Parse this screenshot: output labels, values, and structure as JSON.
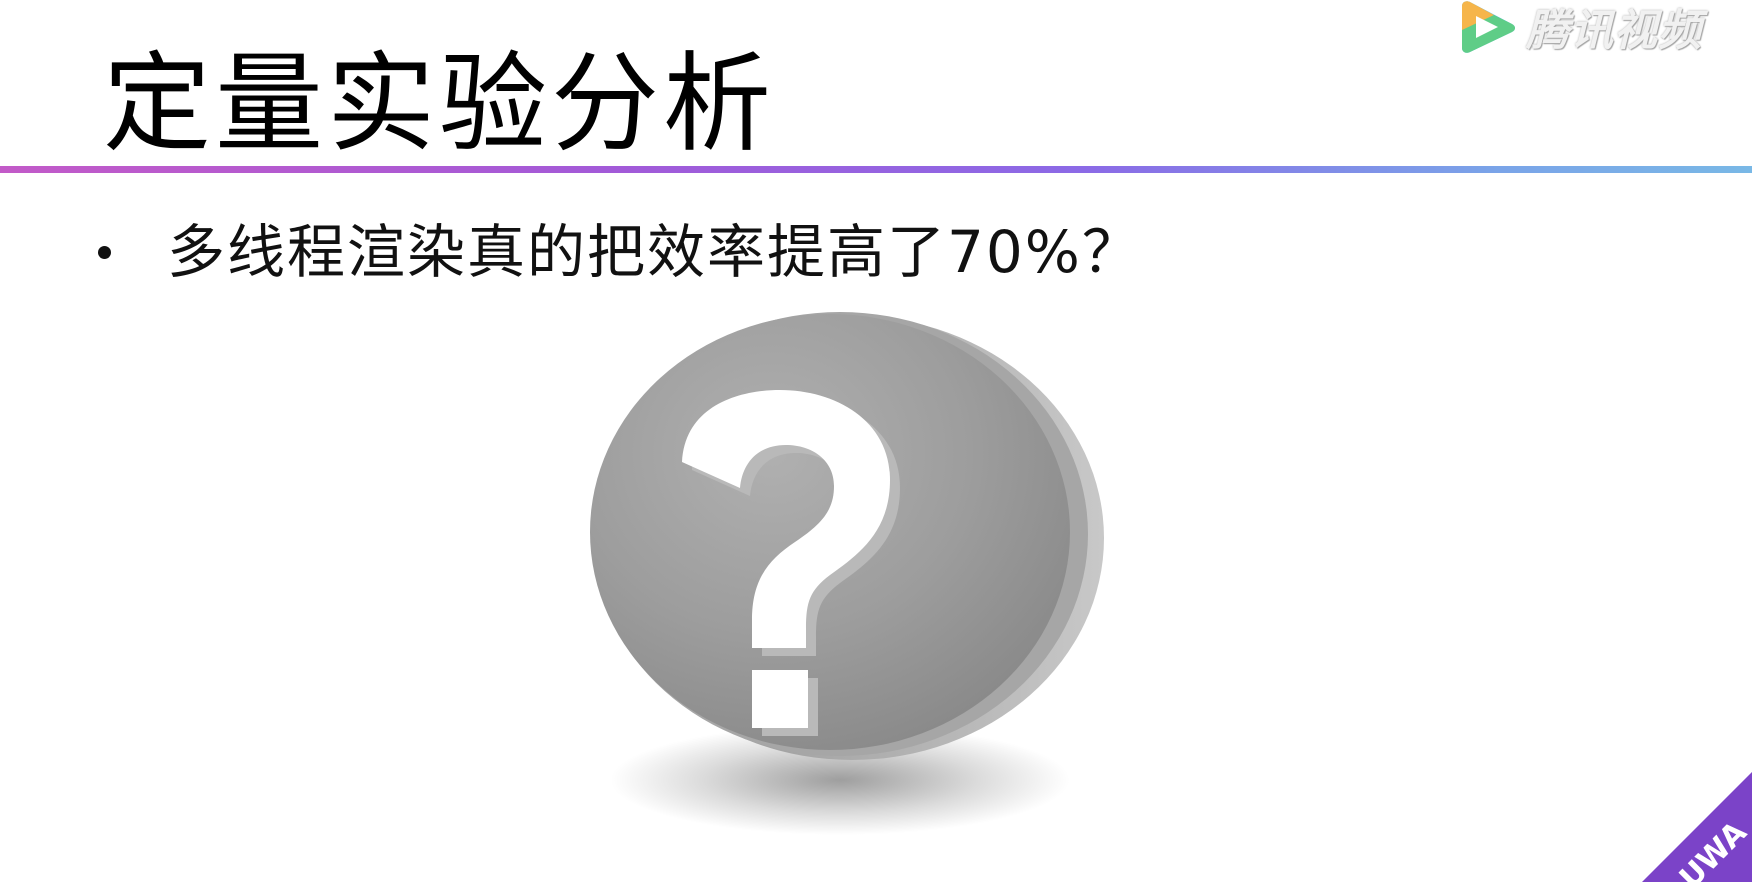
{
  "slide": {
    "title": "定量实验分析",
    "bullets": [
      "多线程渲染真的把效率提高了70%？"
    ]
  },
  "illustration": {
    "icon": "question-mark-icon",
    "symbol": "?"
  },
  "watermark": {
    "text": "腾讯视频",
    "icon": "play-logo-icon"
  },
  "corner_badge": {
    "text": "UWA",
    "icon": "uwa-logo-icon"
  },
  "colors": {
    "title_rule_start": "#c25ac8",
    "title_rule_end": "#79b8e6",
    "coin": "#9c9c9c",
    "badge": "#7b43c8"
  }
}
